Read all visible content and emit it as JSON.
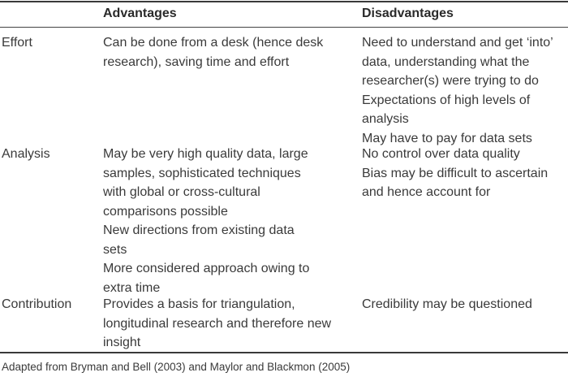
{
  "table": {
    "header": {
      "col1": "",
      "col2": "Advantages",
      "col3": "Disadvantages"
    },
    "rows": [
      {
        "label": "Effort",
        "advantages": [
          "Can be done from a desk (hence desk research), saving time and effort"
        ],
        "disadvantages": [
          "Need to understand and get ‘into’ data, understanding what the researcher(s) were trying to do",
          "Expectations of high levels of analysis",
          "May have to pay for data sets"
        ]
      },
      {
        "label": "Analysis",
        "advantages": [
          "May be very high quality data, large samples, sophisticated techniques with global or cross-cultural comparisons possible",
          "New directions from existing data sets",
          "More considered approach owing to extra time"
        ],
        "disadvantages": [
          "No control over data quality",
          "Bias may be difficult to ascertain and hence account for"
        ]
      },
      {
        "label": "Contribution",
        "advantages": [
          "Provides a basis for triangulation, longitudinal research and therefore new insight"
        ],
        "disadvantages": [
          "Credibility may be questioned"
        ]
      }
    ]
  },
  "footnote": "Adapted from Bryman and Bell (2003) and Maylor and Blackmon (2005)"
}
